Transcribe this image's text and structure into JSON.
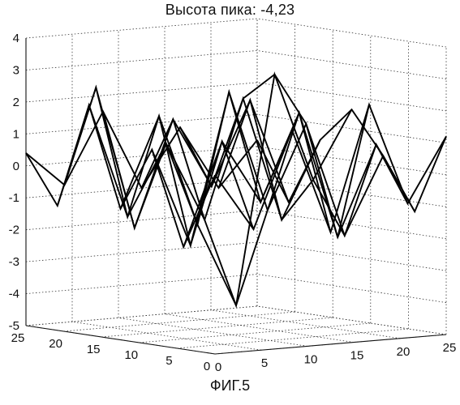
{
  "chart_data": {
    "type": "surface-3d",
    "title": "Высота пика: -4,23",
    "caption": "ФИГ.5",
    "xlabel": "",
    "ylabel": "",
    "zlabel": "",
    "x_ticks": [
      "0",
      "5",
      "10",
      "15",
      "20",
      "25"
    ],
    "y_ticks": [
      "25",
      "20",
      "15",
      "10",
      "5",
      "0"
    ],
    "z_ticks": [
      "-5",
      "-4",
      "-3",
      "-2",
      "-1",
      "0",
      "1",
      "2",
      "3",
      "4"
    ],
    "xlim": [
      0,
      25
    ],
    "ylim": [
      0,
      25
    ],
    "zlim": [
      -5,
      4
    ],
    "grid": true,
    "peak": {
      "x": 0,
      "y": 0,
      "z": -4.23
    },
    "grid_size": 7,
    "z_values": [
      [
        0.6,
        -1.2,
        1.8,
        -1.5,
        2.4,
        -0.8,
        1.2
      ],
      [
        -1.8,
        1.4,
        -0.6,
        2.1,
        -1.9,
        0.9,
        -1.3
      ],
      [
        1.1,
        -2.0,
        2.7,
        -1.1,
        1.5,
        -2.1,
        0.3
      ],
      [
        -0.9,
        1.9,
        -1.6,
        -4.23,
        2.9,
        -0.5,
        1.6
      ],
      [
        2.2,
        -1.4,
        0.8,
        -1.7,
        2.0,
        -1.9,
        0.5
      ],
      [
        -1.1,
        2.5,
        -2.0,
        1.3,
        -0.9,
        1.7,
        -1.6
      ],
      [
        0.4,
        -0.7,
        1.5,
        -1.0,
        0.8,
        -1.2,
        0.2
      ]
    ]
  }
}
